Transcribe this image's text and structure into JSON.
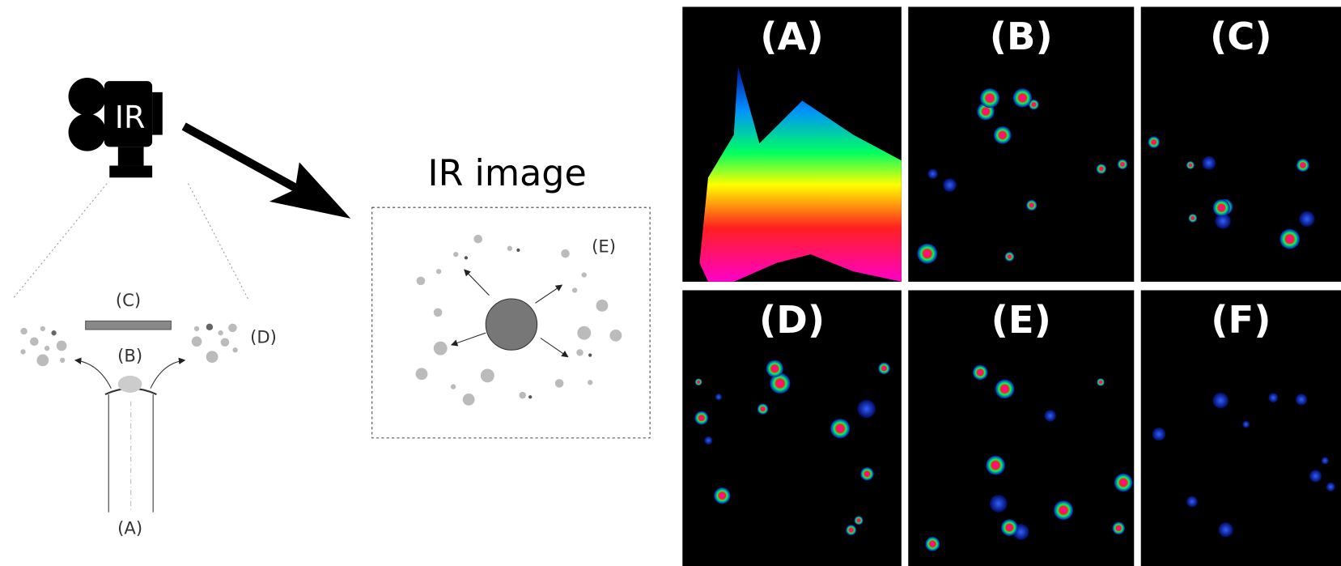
{
  "diagram": {
    "camera_label": "IR",
    "labels": [
      "(A)",
      "(B)",
      "(C)",
      "(D)"
    ]
  },
  "ir_image": {
    "title": "IR image",
    "label": "(E)"
  },
  "panels": [
    {
      "label": "(A)"
    },
    {
      "label": "(B)"
    },
    {
      "label": "(C)"
    },
    {
      "label": "(D)"
    },
    {
      "label": "(E)"
    },
    {
      "label": "(F)"
    }
  ]
}
